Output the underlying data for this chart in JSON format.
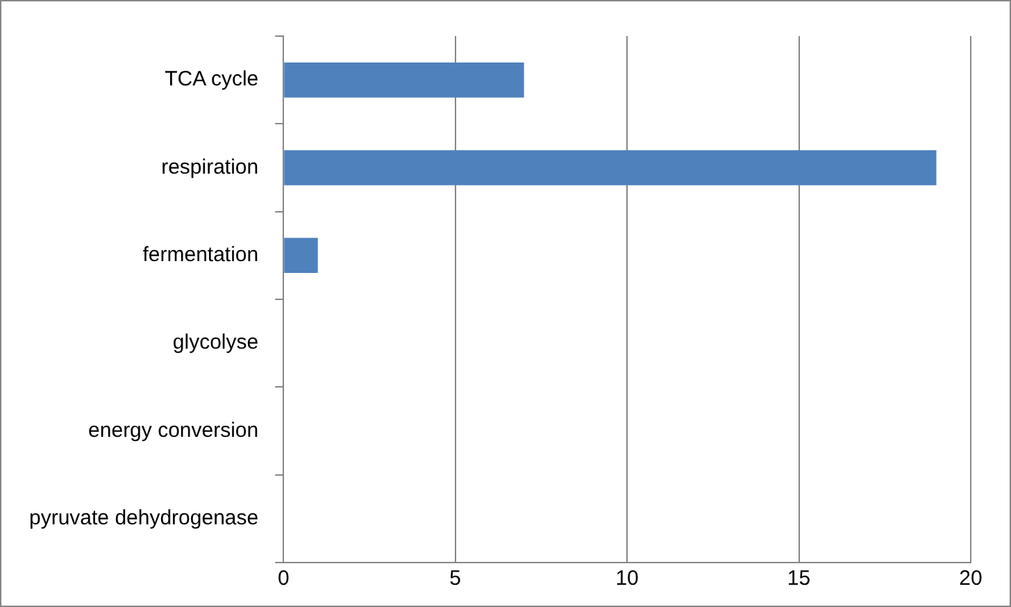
{
  "chart_data": {
    "type": "bar",
    "orientation": "horizontal",
    "categories": [
      "TCA cycle",
      "respiration",
      "fermentation",
      "glycolyse",
      "energy conversion",
      "pyruvate dehydrogenase"
    ],
    "values": [
      7,
      19,
      1,
      0,
      0,
      0
    ],
    "color": "#4f81bd",
    "xlim": [
      0,
      20
    ],
    "xticks": [
      0,
      5,
      10,
      15,
      20
    ],
    "grid": "x",
    "legend": false
  }
}
